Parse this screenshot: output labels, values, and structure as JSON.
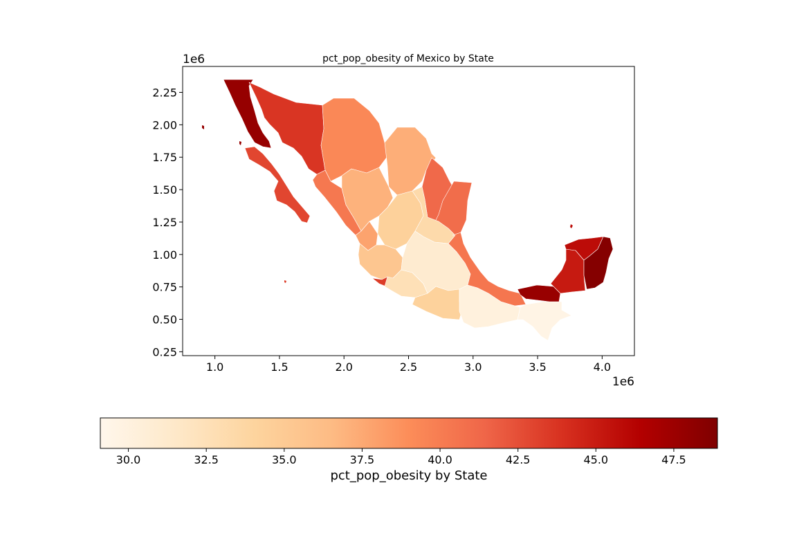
{
  "title": "pct_pop_obesity of Mexico by State",
  "x_axis": {
    "offset_label": "1e6",
    "ticks": [
      "1.0",
      "1.5",
      "2.0",
      "2.5",
      "3.0",
      "3.5",
      "4.0"
    ]
  },
  "y_axis": {
    "offset_label": "1e6",
    "ticks": [
      "0.25",
      "0.50",
      "0.75",
      "1.00",
      "1.25",
      "1.50",
      "1.75",
      "2.00",
      "2.25"
    ]
  },
  "colorbar": {
    "label": "pct_pop_obesity by State",
    "ticks": [
      "30.0",
      "32.5",
      "35.0",
      "37.5",
      "40.0",
      "42.5",
      "45.0",
      "47.5"
    ],
    "colormap": "OrRd",
    "stops": [
      "#fff7ec",
      "#fee8c8",
      "#fdd49e",
      "#fdbb84",
      "#fc8d59",
      "#ef6548",
      "#d7301f",
      "#b30000",
      "#7f0000"
    ]
  },
  "chart_data": {
    "type": "choropleth",
    "title": "pct_pop_obesity of Mexico by State",
    "x_offset": "1e6",
    "y_offset": "1e6",
    "xlim": [
      0.75,
      4.25
    ],
    "ylim": [
      0.22,
      2.45
    ],
    "value_range": [
      29.1,
      48.9
    ],
    "regions": [
      {
        "region": "baja-california",
        "value": 47.8
      },
      {
        "region": "baja-california-sur",
        "value": 42.9
      },
      {
        "region": "sonora",
        "value": 43.7
      },
      {
        "region": "chihuahua",
        "value": 39.3
      },
      {
        "region": "coahuila",
        "value": 37.2
      },
      {
        "region": "nuevo-leon",
        "value": 41.2
      },
      {
        "region": "tamaulipas",
        "value": 41.0
      },
      {
        "region": "sinaloa",
        "value": 40.3
      },
      {
        "region": "durango",
        "value": 37.0
      },
      {
        "region": "zacatecas",
        "value": 34.3
      },
      {
        "region": "san-luis-potosi",
        "value": 33.3
      },
      {
        "region": "nayarit",
        "value": 37.8
      },
      {
        "region": "jalisco",
        "value": 35.4
      },
      {
        "region": "colima",
        "value": 43.4
      },
      {
        "region": "michoacan",
        "value": 32.6
      },
      {
        "region": "central-states",
        "value": 31.0
      },
      {
        "region": "guerrero",
        "value": 34.2
      },
      {
        "region": "veracruz",
        "value": 40.4
      },
      {
        "region": "oaxaca",
        "value": 30.1
      },
      {
        "region": "chiapas",
        "value": 29.6
      },
      {
        "region": "tabasco",
        "value": 47.7
      },
      {
        "region": "campeche",
        "value": 45.1
      },
      {
        "region": "yucatan",
        "value": 45.8
      },
      {
        "region": "quintana-roo",
        "value": 48.6
      }
    ]
  }
}
